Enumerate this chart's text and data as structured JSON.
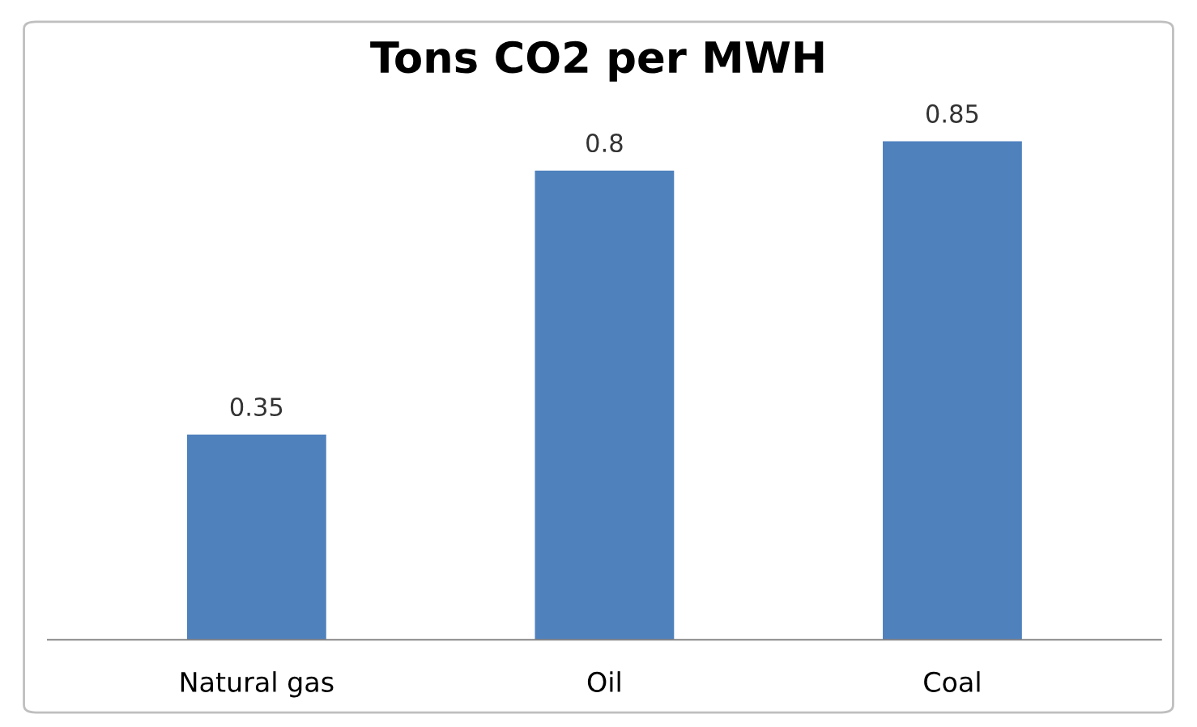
{
  "chart_data": {
    "type": "bar",
    "title": "Tons CO2 per MWH",
    "categories": [
      "Natural gas",
      "Oil",
      "Coal"
    ],
    "values": [
      0.35,
      0.8,
      0.85
    ],
    "color": "#4f81bd",
    "data_labels": true,
    "grid": false,
    "legend": false
  }
}
